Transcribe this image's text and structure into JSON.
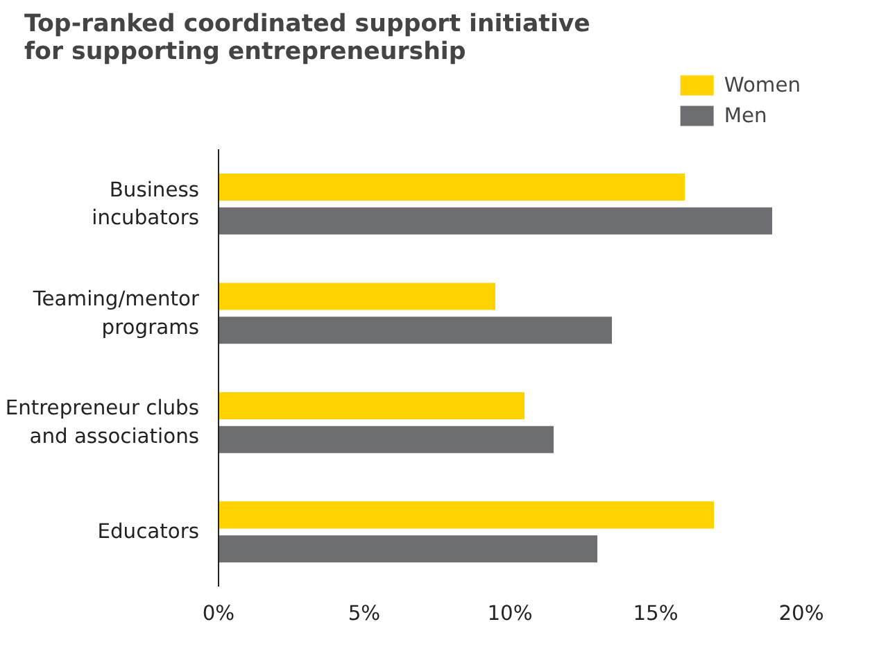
{
  "chart_data": {
    "type": "bar",
    "orientation": "horizontal",
    "title": "Top-ranked coordinated support initiative for supporting entrepreneurship",
    "categories": [
      "Business\nincubators",
      "Teaming/mentor\nprograms",
      "Entrepreneur clubs\nand associations",
      "Educators"
    ],
    "series": [
      {
        "name": "Women",
        "color": "#ffd200",
        "values": [
          16,
          9.5,
          10.5,
          17
        ]
      },
      {
        "name": "Men",
        "color": "#6d6e71",
        "values": [
          19,
          13.5,
          11.5,
          13
        ]
      }
    ],
    "xlim": [
      0,
      20
    ],
    "xticks": [
      {
        "value": 0,
        "label": "0%"
      },
      {
        "value": 5,
        "label": "5%"
      },
      {
        "value": 10,
        "label": "10%"
      },
      {
        "value": 15,
        "label": "15%"
      },
      {
        "value": 20,
        "label": "20%"
      }
    ],
    "grid": false,
    "legend": "top right"
  }
}
